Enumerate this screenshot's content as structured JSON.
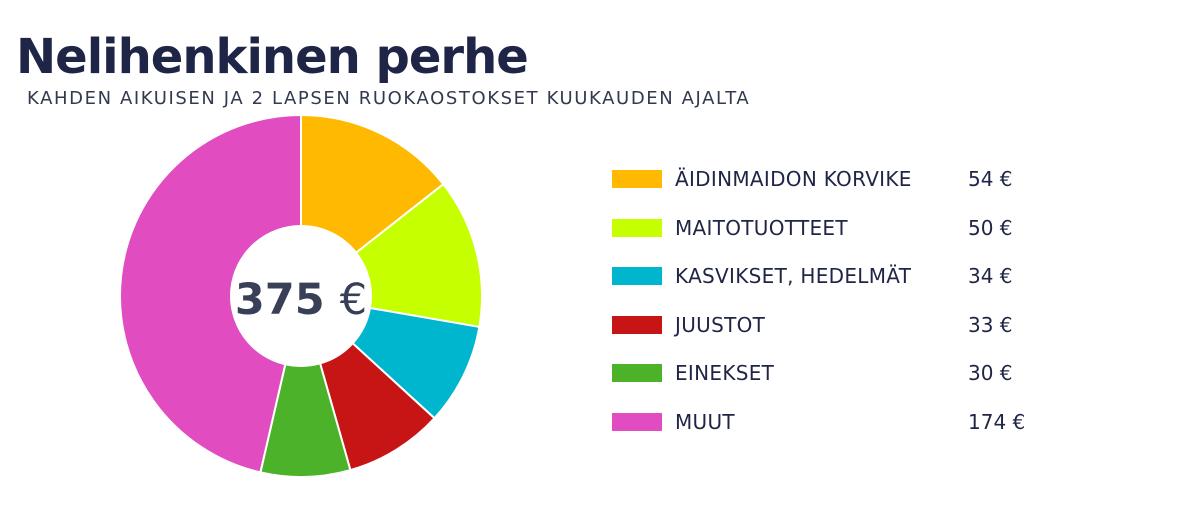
{
  "chart_data": {
    "type": "pie",
    "title": "Nelihenkinen perhe",
    "subtitle": "KAHDEN AIKUISEN JA 2 LAPSEN RUOKAOSTOKSET KUUKAUDEN AJALTA",
    "total": {
      "number": "375",
      "currency": "€"
    },
    "legend_position": "right",
    "slices": [
      {
        "label": "ÄIDINMAIDON KORVIKE",
        "value": 54,
        "display": "54 €",
        "color": "#ffb900"
      },
      {
        "label": "MAITOTUOTTEET",
        "value": 50,
        "display": "50 €",
        "color": "#c5ff00"
      },
      {
        "label": "KASVIKSET, HEDELMÄT",
        "value": 34,
        "display": "34 €",
        "color": "#00b6ce"
      },
      {
        "label": "JUUSTOT",
        "value": 33,
        "display": "33 €",
        "color": "#c71414"
      },
      {
        "label": "EINEKSET",
        "value": 30,
        "display": "30 €",
        "color": "#4cb22a"
      },
      {
        "label": "MUUT",
        "value": 174,
        "display": "174 €",
        "color": "#e14cc1"
      }
    ]
  }
}
